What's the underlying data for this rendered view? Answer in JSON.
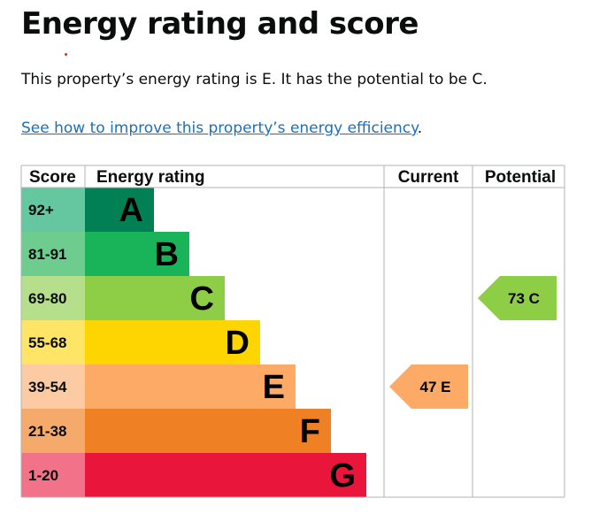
{
  "title": "Energy rating and score",
  "summary": "This property’s energy rating is E. It has the potential to be C.",
  "improve_link": "See how to improve this property’s energy efficiency",
  "improve_link_suffix": ".",
  "chart_data": {
    "type": "table",
    "headers": {
      "score": "Score",
      "rating": "Energy rating",
      "current": "Current",
      "potential": "Potential"
    },
    "bands": [
      {
        "letter": "A",
        "range": "92+",
        "color": "#008054",
        "score_bg": "#64c7a0"
      },
      {
        "letter": "B",
        "range": "81-91",
        "color": "#19b459",
        "score_bg": "#6fcc8f"
      },
      {
        "letter": "C",
        "range": "69-80",
        "color": "#8dce46",
        "score_bg": "#b5df8b"
      },
      {
        "letter": "D",
        "range": "55-68",
        "color": "#ffd500",
        "score_bg": "#ffe566"
      },
      {
        "letter": "E",
        "range": "39-54",
        "color": "#fcaa65",
        "score_bg": "#fdcba3"
      },
      {
        "letter": "F",
        "range": "21-38",
        "color": "#ef8023",
        "score_bg": "#f5aa6b"
      },
      {
        "letter": "G",
        "range": "1-20",
        "color": "#e9153b",
        "score_bg": "#f27389"
      }
    ],
    "current": {
      "score": 47,
      "letter": "E",
      "label": "47 E"
    },
    "potential": {
      "score": 73,
      "letter": "C",
      "label": "73 C"
    }
  }
}
